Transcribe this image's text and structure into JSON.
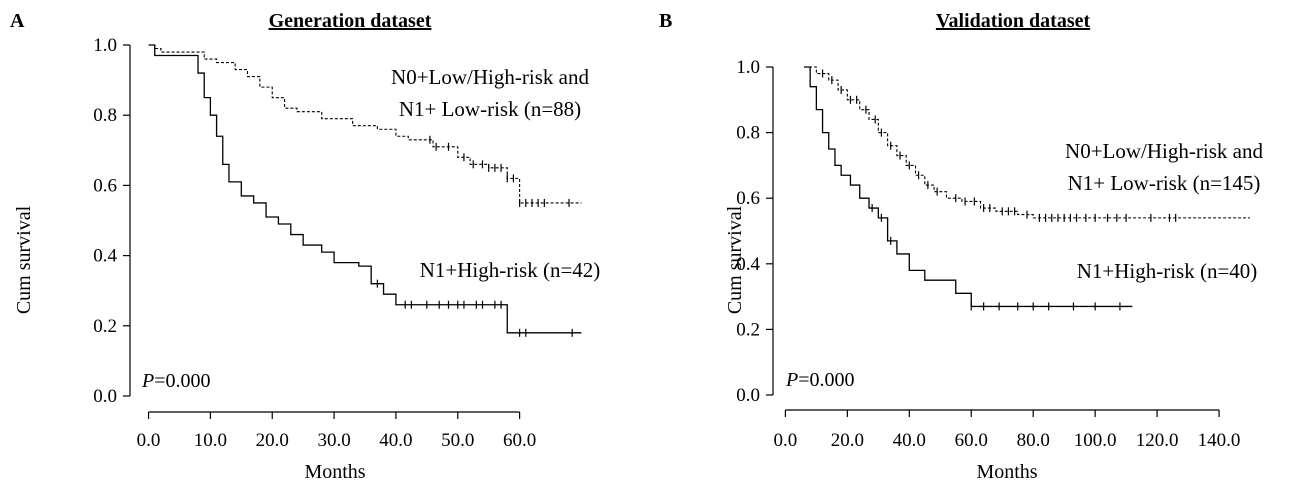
{
  "chart_data": [
    {
      "panel": "A",
      "type": "line",
      "title": "Generation dataset",
      "xlabel": "Months",
      "ylabel": "Cum survival",
      "xticks": [
        "0.0",
        "10.0",
        "20.0",
        "30.0",
        "40.0",
        "50.0",
        "60.0"
      ],
      "yticks": [
        "0.0",
        "0.2",
        "0.4",
        "0.6",
        "0.8",
        "1.0"
      ],
      "xlim": [
        -3,
        73
      ],
      "ylim": [
        0,
        1
      ],
      "annotation": {
        "prefix": "P",
        "text": "=0.000"
      },
      "series": [
        {
          "label_lines": [
            "N0+Low/High-risk and",
            "N1+ Low-risk (n=88)"
          ],
          "style": "dashed",
          "steps": [
            [
              0,
              1.0
            ],
            [
              1,
              0.99
            ],
            [
              2,
              0.98
            ],
            [
              9,
              0.96
            ],
            [
              11,
              0.95
            ],
            [
              14,
              0.93
            ],
            [
              16,
              0.91
            ],
            [
              18,
              0.88
            ],
            [
              20,
              0.85
            ],
            [
              22,
              0.82
            ],
            [
              24,
              0.81
            ],
            [
              28,
              0.79
            ],
            [
              33,
              0.77
            ],
            [
              37,
              0.76
            ],
            [
              40,
              0.74
            ],
            [
              42,
              0.73
            ],
            [
              46,
              0.71
            ],
            [
              50,
              0.68
            ],
            [
              52,
              0.66
            ],
            [
              55,
              0.65
            ],
            [
              58,
              0.62
            ],
            [
              60,
              0.55
            ],
            [
              70,
              0.55
            ]
          ],
          "censor": [
            45.5,
            46.5,
            48.5,
            51,
            52.5,
            54,
            55,
            56,
            57,
            58,
            59,
            60,
            61,
            62,
            63,
            64,
            68
          ]
        },
        {
          "label": "N1+High-risk (n=42)",
          "style": "solid",
          "steps": [
            [
              0,
              1.0
            ],
            [
              1,
              0.97
            ],
            [
              5,
              0.97
            ],
            [
              8,
              0.92
            ],
            [
              9,
              0.85
            ],
            [
              10,
              0.8
            ],
            [
              11,
              0.74
            ],
            [
              12,
              0.66
            ],
            [
              13,
              0.61
            ],
            [
              15,
              0.57
            ],
            [
              17,
              0.55
            ],
            [
              19,
              0.51
            ],
            [
              21,
              0.49
            ],
            [
              23,
              0.46
            ],
            [
              25,
              0.43
            ],
            [
              28,
              0.41
            ],
            [
              30,
              0.38
            ],
            [
              34,
              0.37
            ],
            [
              36,
              0.32
            ],
            [
              38,
              0.29
            ],
            [
              40,
              0.26
            ],
            [
              58,
              0.18
            ],
            [
              70,
              0.18
            ]
          ],
          "censor": [
            37,
            41.5,
            42.5,
            45,
            47,
            48.5,
            50,
            51,
            53,
            54,
            56,
            57,
            60,
            61,
            68.5
          ]
        }
      ]
    },
    {
      "panel": "B",
      "type": "line",
      "title": "Validation dataset",
      "xlabel": "Months",
      "ylabel": "Cum survival",
      "xticks": [
        "0.0",
        "20.0",
        "40.0",
        "60.0",
        "80.0",
        "100.0",
        "120.0",
        "140.0"
      ],
      "yticks": [
        "0.0",
        "0.2",
        "0.4",
        "0.6",
        "0.8",
        "1.0"
      ],
      "xlim": [
        -4,
        160
      ],
      "ylim": [
        0,
        1
      ],
      "annotation": {
        "prefix": "P",
        "text": "=0.000"
      },
      "series": [
        {
          "label_lines": [
            "N0+Low/High-risk and",
            "N1+ Low-risk (n=145)"
          ],
          "style": "dashed",
          "steps": [
            [
              6,
              1.0
            ],
            [
              10,
              0.98
            ],
            [
              14,
              0.96
            ],
            [
              17,
              0.93
            ],
            [
              20,
              0.9
            ],
            [
              24,
              0.87
            ],
            [
              27,
              0.84
            ],
            [
              30,
              0.8
            ],
            [
              33,
              0.76
            ],
            [
              36,
              0.73
            ],
            [
              39,
              0.7
            ],
            [
              42,
              0.67
            ],
            [
              45,
              0.64
            ],
            [
              48,
              0.62
            ],
            [
              52,
              0.6
            ],
            [
              57,
              0.59
            ],
            [
              63,
              0.57
            ],
            [
              68,
              0.56
            ],
            [
              75,
              0.55
            ],
            [
              80,
              0.54
            ],
            [
              150,
              0.54
            ]
          ],
          "censor": [
            12,
            15,
            18,
            21,
            23,
            26,
            29,
            31,
            34,
            37,
            40,
            43,
            46,
            49,
            55,
            58,
            61,
            64,
            66,
            70,
            72,
            74,
            78,
            82,
            84,
            86,
            88,
            90,
            92,
            94,
            97,
            100,
            104,
            107,
            110,
            118,
            124,
            126
          ]
        },
        {
          "label": "N1+High-risk (n=40)",
          "style": "solid",
          "steps": [
            [
              6,
              1.0
            ],
            [
              8,
              0.94
            ],
            [
              10,
              0.87
            ],
            [
              12,
              0.8
            ],
            [
              14,
              0.75
            ],
            [
              16,
              0.7
            ],
            [
              18,
              0.67
            ],
            [
              21,
              0.64
            ],
            [
              24,
              0.6
            ],
            [
              27,
              0.57
            ],
            [
              30,
              0.54
            ],
            [
              33,
              0.47
            ],
            [
              36,
              0.43
            ],
            [
              40,
              0.38
            ],
            [
              45,
              0.35
            ],
            [
              55,
              0.31
            ],
            [
              60,
              0.27
            ],
            [
              112,
              0.27
            ]
          ],
          "censor": [
            28,
            31,
            34,
            60,
            64,
            69,
            75,
            80,
            85,
            93,
            100,
            108
          ]
        }
      ]
    }
  ]
}
